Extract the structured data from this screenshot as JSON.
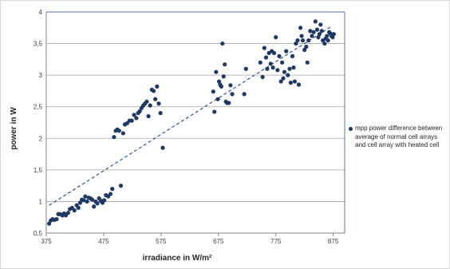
{
  "chart_data": {
    "type": "scatter",
    "xlabel": "irradiance in W/m²",
    "ylabel": "power in W",
    "xlim": [
      375,
      895
    ],
    "ylim": [
      0.5,
      4
    ],
    "x_ticks": [
      "375",
      "475",
      "575",
      "675",
      "775",
      "875"
    ],
    "y_ticks": [
      "0,5",
      "1",
      "1,5",
      "2",
      "2,5",
      "3",
      "3,5",
      "4"
    ],
    "grid": "horizontal",
    "legend_position": "right",
    "trendline": {
      "type": "linear",
      "x": [
        380,
        870
      ],
      "y": [
        0.94,
        3.76
      ],
      "style": "dashed"
    },
    "series": [
      {
        "name": "mpp power difference between average  of normal cell arrays and cell array with heated  cell",
        "color": "#1f3864",
        "points": [
          [
            380,
            0.65
          ],
          [
            383,
            0.7
          ],
          [
            386,
            0.72
          ],
          [
            389,
            0.71
          ],
          [
            393,
            0.72
          ],
          [
            396,
            0.8
          ],
          [
            399,
            0.8
          ],
          [
            403,
            0.78
          ],
          [
            406,
            0.81
          ],
          [
            409,
            0.78
          ],
          [
            413,
            0.82
          ],
          [
            416,
            0.88
          ],
          [
            420,
            0.9
          ],
          [
            424,
            0.86
          ],
          [
            428,
            0.94
          ],
          [
            431,
            0.9
          ],
          [
            434,
            0.98
          ],
          [
            437,
            1.03
          ],
          [
            440,
            1.02
          ],
          [
            443,
            1.08
          ],
          [
            446,
            1.0
          ],
          [
            449,
            1.06
          ],
          [
            452,
            1.05
          ],
          [
            455,
            1.03
          ],
          [
            458,
            0.92
          ],
          [
            461,
            1.0
          ],
          [
            464,
            0.97
          ],
          [
            467,
            1.05
          ],
          [
            470,
            1.01
          ],
          [
            473,
            0.98
          ],
          [
            476,
            1.02
          ],
          [
            479,
            1.1
          ],
          [
            483,
            1.08
          ],
          [
            487,
            1.12
          ],
          [
            490,
            1.2
          ],
          [
            493,
            2.02
          ],
          [
            496,
            2.12
          ],
          [
            499,
            2.14
          ],
          [
            502,
            2.12
          ],
          [
            505,
            1.25
          ],
          [
            509,
            2.08
          ],
          [
            512,
            2.22
          ],
          [
            516,
            2.24
          ],
          [
            520,
            2.28
          ],
          [
            524,
            2.28
          ],
          [
            528,
            2.37
          ],
          [
            532,
            2.32
          ],
          [
            535,
            2.4
          ],
          [
            538,
            2.43
          ],
          [
            541,
            2.48
          ],
          [
            544,
            2.52
          ],
          [
            547,
            2.55
          ],
          [
            550,
            2.58
          ],
          [
            553,
            2.35
          ],
          [
            556,
            2.52
          ],
          [
            559,
            2.77
          ],
          [
            562,
            2.75
          ],
          [
            565,
            2.62
          ],
          [
            568,
            2.82
          ],
          [
            571,
            2.55
          ],
          [
            574,
            2.4
          ],
          [
            578,
            1.85
          ],
          [
            666,
            2.74
          ],
          [
            668,
            2.42
          ],
          [
            671,
            3.05
          ],
          [
            674,
            2.62
          ],
          [
            676,
            2.9
          ],
          [
            678,
            2.85
          ],
          [
            680,
            2.82
          ],
          [
            682,
            3.5
          ],
          [
            684,
            2.98
          ],
          [
            686,
            3.17
          ],
          [
            688,
            2.58
          ],
          [
            690,
            2.56
          ],
          [
            693,
            2.56
          ],
          [
            696,
            2.84
          ],
          [
            699,
            2.7
          ],
          [
            720,
            2.7
          ],
          [
            723,
            3.1
          ],
          [
            748,
            3.2
          ],
          [
            752,
            2.97
          ],
          [
            755,
            3.43
          ],
          [
            758,
            3.28
          ],
          [
            760,
            3.1
          ],
          [
            763,
            3.35
          ],
          [
            766,
            3.18
          ],
          [
            768,
            3.38
          ],
          [
            770,
            3.12
          ],
          [
            772,
            3.35
          ],
          [
            775,
            3.6
          ],
          [
            778,
            3.08
          ],
          [
            781,
            3.3
          ],
          [
            784,
            2.9
          ],
          [
            786,
            3.2
          ],
          [
            788,
            2.95
          ],
          [
            790,
            3.05
          ],
          [
            793,
            3.38
          ],
          [
            796,
            3.0
          ],
          [
            799,
            3.1
          ],
          [
            801,
            2.88
          ],
          [
            804,
            3.3
          ],
          [
            806,
            3.12
          ],
          [
            808,
            2.9
          ],
          [
            810,
            3.5
          ],
          [
            813,
            3.55
          ],
          [
            815,
            2.85
          ],
          [
            818,
            3.75
          ],
          [
            820,
            3.62
          ],
          [
            822,
            3.55
          ],
          [
            825,
            3.4
          ],
          [
            828,
            3.45
          ],
          [
            830,
            3.2
          ],
          [
            832,
            3.55
          ],
          [
            835,
            3.7
          ],
          [
            838,
            3.62
          ],
          [
            841,
            3.68
          ],
          [
            844,
            3.85
          ],
          [
            847,
            3.72
          ],
          [
            849,
            3.6
          ],
          [
            851,
            3.65
          ],
          [
            853,
            3.8
          ],
          [
            855,
            3.7
          ],
          [
            857,
            3.55
          ],
          [
            860,
            3.5
          ],
          [
            862,
            3.58
          ],
          [
            864,
            3.62
          ],
          [
            866,
            3.55
          ],
          [
            868,
            3.68
          ],
          [
            870,
            3.66
          ],
          [
            872,
            3.62
          ],
          [
            874,
            3.6
          ],
          [
            876,
            3.65
          ]
        ]
      }
    ]
  }
}
